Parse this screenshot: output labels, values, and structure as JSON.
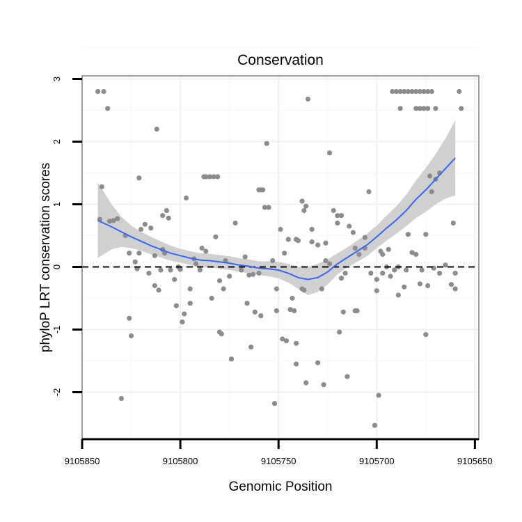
{
  "chart_data": {
    "type": "scatter",
    "title": "Conservation",
    "xlabel": "Genomic Position",
    "ylabel": "phyloP LRT conservation scores",
    "xlim": [
      9105850,
      9105648
    ],
    "ylim": [
      -2.75,
      3.05
    ],
    "x_reversed": true,
    "x_ticks": [
      9105850,
      9105800,
      9105750,
      9105700,
      9105650
    ],
    "x_tick_labels": [
      "9105850",
      "9105800",
      "9105750",
      "9105700",
      "9105650"
    ],
    "y_ticks": [
      3,
      2,
      1,
      0,
      -1,
      -2
    ],
    "y_tick_labels": [
      "3",
      "2",
      "1",
      "0",
      "-1",
      "-2"
    ],
    "grid": true,
    "reference_line": {
      "y": 0,
      "style": "dashed",
      "color": "#000000"
    },
    "points_color": "#8c8c8c",
    "smooth_color": "#3366ff",
    "band_color": "#d0d0d0",
    "points": [
      [
        9105842,
        2.8
      ],
      [
        9105839,
        2.8
      ],
      [
        9105837,
        2.53
      ],
      [
        9105840,
        1.28
      ],
      [
        9105841,
        0.76
      ],
      [
        9105836,
        0.73
      ],
      [
        9105834,
        0.74
      ],
      [
        9105832,
        0.77
      ],
      [
        9105828,
        0.5
      ],
      [
        9105826,
        0.22
      ],
      [
        9105823,
        0.08
      ],
      [
        9105822,
        -0.03
      ],
      [
        9105818,
        0.68
      ],
      [
        9105820,
        0.6
      ],
      [
        9105815,
        0.62
      ],
      [
        9105813,
        0.18
      ],
      [
        9105816,
        -0.1
      ],
      [
        9105813,
        -0.3
      ],
      [
        9105811,
        -0.37
      ],
      [
        9105809,
        0.28
      ],
      [
        9105807,
        0.9
      ],
      [
        9105809,
        0.82
      ],
      [
        9105806,
        0.78
      ],
      [
        9105803,
        -0.2
      ],
      [
        9105800,
        -0.04
      ],
      [
        9105797,
        1.1
      ],
      [
        9105795,
        -0.35
      ],
      [
        9105793,
        0.13
      ],
      [
        9105789,
        0.3
      ],
      [
        9105787,
        0.25
      ],
      [
        9105784,
        -0.5
      ],
      [
        9105782,
        0.48
      ],
      [
        9105780,
        -0.22
      ],
      [
        9105778,
        -0.35
      ],
      [
        9105777,
        0.1
      ],
      [
        9105775,
        -0.15
      ],
      [
        9105772,
        0.7
      ],
      [
        9105769,
        -0.05
      ],
      [
        9105767,
        0.16
      ],
      [
        9105763,
        -0.12
      ],
      [
        9105757,
        0.95
      ],
      [
        9105755,
        0.95
      ],
      [
        9105753,
        0.1
      ],
      [
        9105751,
        -0.35
      ],
      [
        9105749,
        0.6
      ],
      [
        9105747,
        0.22
      ],
      [
        9105745,
        0.44
      ],
      [
        9105741,
        0.44
      ],
      [
        9105740,
        0.42
      ],
      [
        9105738,
        1.05
      ],
      [
        9105736,
        0.97
      ],
      [
        9105733,
        0.4
      ],
      [
        9105730,
        0.35
      ],
      [
        9105728,
        -0.35
      ],
      [
        9105726,
        0.38
      ],
      [
        9105724,
        0.05
      ],
      [
        9105722,
        0.9
      ],
      [
        9105720,
        0.7
      ],
      [
        9105718,
        -0.18
      ],
      [
        9105714,
        0.65
      ],
      [
        9105712,
        0.55
      ],
      [
        9105711,
        0.3
      ],
      [
        9105709,
        0.2
      ],
      [
        9105706,
        0.47
      ],
      [
        9105704,
        1.2
      ],
      [
        9105703,
        -0.1
      ],
      [
        9105700,
        -0.38
      ],
      [
        9105698,
        0.25
      ],
      [
        9105697,
        0.2
      ],
      [
        9105694,
        0.28
      ],
      [
        9105689,
        0.0
      ],
      [
        9105689,
        -0.45
      ],
      [
        9105686,
        -0.32
      ],
      [
        9105684,
        0.52
      ],
      [
        9105682,
        0.23
      ],
      [
        9105678,
        -0.27
      ],
      [
        9105675,
        0.52
      ],
      [
        9105673,
        1.45
      ],
      [
        9105672,
        1.2
      ],
      [
        9105670,
        1.4
      ],
      [
        9105668,
        1.5
      ],
      [
        9105665,
        0.03
      ],
      [
        9105662,
        -0.28
      ],
      [
        9105660,
        -0.35
      ],
      [
        9105661,
        0.7
      ],
      [
        9105658,
        2.8
      ],
      [
        9105657,
        2.53
      ],
      [
        9105660,
        -0.1
      ],
      [
        9105668,
        -0.1
      ],
      [
        9105671,
        -0.02
      ],
      [
        9105674,
        -0.3
      ],
      [
        9105677,
        -0.05
      ],
      [
        9105680,
        0.2
      ],
      [
        9105685,
        -0.05
      ],
      [
        9105691,
        -0.05
      ],
      [
        9105695,
        0.0
      ],
      [
        9105716,
        -0.1
      ],
      [
        9105726,
        0.1
      ],
      [
        9105738,
        -0.35
      ],
      [
        9105760,
        -0.1
      ],
      [
        9105765,
        -0.13
      ],
      [
        9105790,
        -0.05
      ],
      [
        9105805,
        -0.05
      ],
      [
        9105808,
        0.22
      ],
      [
        9105792,
        0.05
      ],
      [
        9105821,
        1.42
      ],
      [
        9105812,
        2.2
      ],
      [
        9105830,
        -2.1
      ],
      [
        9105826,
        -0.82
      ],
      [
        9105825,
        -1.1
      ],
      [
        9105802,
        -0.62
      ],
      [
        9105798,
        -0.75
      ],
      [
        9105795,
        -0.58
      ],
      [
        9105799,
        -0.88
      ],
      [
        9105779,
        -1.07
      ],
      [
        9105780,
        -1.04
      ],
      [
        9105774,
        -1.47
      ],
      [
        9105766,
        -0.58
      ],
      [
        9105762,
        -0.72
      ],
      [
        9105764,
        -1.28
      ],
      [
        9105759,
        -0.78
      ],
      [
        9105752,
        -2.18
      ],
      [
        9105751,
        -0.7
      ],
      [
        9105748,
        -1.15
      ],
      [
        9105746,
        -1.18
      ],
      [
        9105744,
        -0.68
      ],
      [
        9105743,
        -0.5
      ],
      [
        9105742,
        -0.7
      ],
      [
        9105741,
        -1.55
      ],
      [
        9105741,
        -1.22
      ],
      [
        9105737,
        -0.37
      ],
      [
        9105736,
        -1.85
      ],
      [
        9105730,
        -1.53
      ],
      [
        9105727,
        -1.88
      ],
      [
        9105719,
        -1.04
      ],
      [
        9105717,
        -0.72
      ],
      [
        9105715,
        -1.75
      ],
      [
        9105711,
        -0.7
      ],
      [
        9105710,
        -0.7
      ],
      [
        9105701,
        -2.53
      ],
      [
        9105699,
        -2.05
      ],
      [
        9105675,
        -1.08
      ],
      [
        9105788,
        1.44
      ],
      [
        9105787,
        1.44
      ],
      [
        9105785,
        1.44
      ],
      [
        9105783,
        1.44
      ],
      [
        9105781,
        1.44
      ],
      [
        9105760,
        1.23
      ],
      [
        9105759,
        1.23
      ],
      [
        9105758,
        1.23
      ],
      [
        9105756,
        1.97
      ],
      [
        9105735,
        2.68
      ],
      [
        9105724,
        1.82
      ],
      [
        9105737,
        0.9
      ],
      [
        9105733,
        0.6
      ],
      [
        9105720,
        0.82
      ],
      [
        9105718,
        0.82
      ],
      [
        9105692,
        2.8
      ],
      [
        9105690,
        2.8
      ],
      [
        9105688,
        2.8
      ],
      [
        9105686,
        2.8
      ],
      [
        9105684,
        2.8
      ],
      [
        9105682,
        2.8
      ],
      [
        9105680,
        2.8
      ],
      [
        9105678,
        2.8
      ],
      [
        9105676,
        2.8
      ],
      [
        9105674,
        2.8
      ],
      [
        9105672,
        2.8
      ],
      [
        9105688,
        2.53
      ],
      [
        9105680,
        2.53
      ],
      [
        9105678,
        2.53
      ],
      [
        9105676,
        2.53
      ],
      [
        9105674,
        2.53
      ],
      [
        9105670,
        2.53
      ],
      [
        9105697,
        -0.1
      ],
      [
        9105700,
        -0.2
      ],
      [
        9105693,
        -0.15
      ],
      [
        9105706,
        0.3
      ],
      [
        9105801,
        0.0
      ],
      [
        9105810,
        -0.05
      ],
      [
        9105821,
        0.22
      ]
    ],
    "smooth": [
      [
        9105842,
        0.74
      ],
      [
        9105835,
        0.64
      ],
      [
        9105830,
        0.56
      ],
      [
        9105825,
        0.48
      ],
      [
        9105820,
        0.41
      ],
      [
        9105815,
        0.34
      ],
      [
        9105810,
        0.28
      ],
      [
        9105805,
        0.22
      ],
      [
        9105800,
        0.18
      ],
      [
        9105795,
        0.14
      ],
      [
        9105790,
        0.11
      ],
      [
        9105785,
        0.1
      ],
      [
        9105780,
        0.08
      ],
      [
        9105775,
        0.06
      ],
      [
        9105770,
        0.03
      ],
      [
        9105765,
        0.01
      ],
      [
        9105760,
        -0.02
      ],
      [
        9105755,
        -0.03
      ],
      [
        9105750,
        -0.05
      ],
      [
        9105745,
        -0.1
      ],
      [
        9105740,
        -0.17
      ],
      [
        9105735,
        -0.2
      ],
      [
        9105730,
        -0.17
      ],
      [
        9105725,
        -0.08
      ],
      [
        9105720,
        0.05
      ],
      [
        9105715,
        0.15
      ],
      [
        9105710,
        0.25
      ],
      [
        9105705,
        0.35
      ],
      [
        9105700,
        0.48
      ],
      [
        9105695,
        0.62
      ],
      [
        9105690,
        0.75
      ],
      [
        9105685,
        0.9
      ],
      [
        9105680,
        1.08
      ],
      [
        9105675,
        1.23
      ],
      [
        9105670,
        1.4
      ],
      [
        9105665,
        1.57
      ],
      [
        9105660,
        1.74
      ]
    ],
    "band_upper": [
      [
        9105842,
        1.35
      ],
      [
        9105835,
        1.0
      ],
      [
        9105830,
        0.8
      ],
      [
        9105825,
        0.66
      ],
      [
        9105820,
        0.56
      ],
      [
        9105815,
        0.48
      ],
      [
        9105810,
        0.41
      ],
      [
        9105805,
        0.34
      ],
      [
        9105800,
        0.29
      ],
      [
        9105795,
        0.25
      ],
      [
        9105790,
        0.22
      ],
      [
        9105785,
        0.21
      ],
      [
        9105780,
        0.19
      ],
      [
        9105775,
        0.17
      ],
      [
        9105770,
        0.14
      ],
      [
        9105765,
        0.12
      ],
      [
        9105760,
        0.09
      ],
      [
        9105755,
        0.09
      ],
      [
        9105750,
        0.08
      ],
      [
        9105745,
        0.05
      ],
      [
        9105740,
        0.0
      ],
      [
        9105735,
        0.0
      ],
      [
        9105730,
        0.05
      ],
      [
        9105725,
        0.12
      ],
      [
        9105720,
        0.22
      ],
      [
        9105715,
        0.31
      ],
      [
        9105710,
        0.42
      ],
      [
        9105705,
        0.53
      ],
      [
        9105700,
        0.66
      ],
      [
        9105695,
        0.82
      ],
      [
        9105690,
        0.97
      ],
      [
        9105685,
        1.15
      ],
      [
        9105680,
        1.38
      ],
      [
        9105675,
        1.58
      ],
      [
        9105670,
        1.8
      ],
      [
        9105665,
        2.05
      ],
      [
        9105660,
        2.34
      ]
    ],
    "band_lower": [
      [
        9105842,
        0.14
      ],
      [
        9105835,
        0.28
      ],
      [
        9105830,
        0.32
      ],
      [
        9105825,
        0.3
      ],
      [
        9105820,
        0.26
      ],
      [
        9105815,
        0.2
      ],
      [
        9105810,
        0.15
      ],
      [
        9105805,
        0.1
      ],
      [
        9105800,
        0.07
      ],
      [
        9105795,
        0.03
      ],
      [
        9105790,
        0.0
      ],
      [
        9105785,
        -0.01
      ],
      [
        9105780,
        -0.03
      ],
      [
        9105775,
        -0.05
      ],
      [
        9105770,
        -0.08
      ],
      [
        9105765,
        -0.1
      ],
      [
        9105760,
        -0.13
      ],
      [
        9105755,
        -0.15
      ],
      [
        9105750,
        -0.18
      ],
      [
        9105745,
        -0.25
      ],
      [
        9105740,
        -0.35
      ],
      [
        9105735,
        -0.45
      ],
      [
        9105730,
        -0.4
      ],
      [
        9105725,
        -0.28
      ],
      [
        9105720,
        -0.12
      ],
      [
        9105715,
        -0.01
      ],
      [
        9105710,
        0.08
      ],
      [
        9105705,
        0.17
      ],
      [
        9105700,
        0.3
      ],
      [
        9105695,
        0.42
      ],
      [
        9105690,
        0.53
      ],
      [
        9105685,
        0.65
      ],
      [
        9105680,
        0.78
      ],
      [
        9105675,
        0.88
      ],
      [
        9105670,
        1.0
      ],
      [
        9105665,
        1.09
      ],
      [
        9105660,
        1.14
      ]
    ]
  }
}
